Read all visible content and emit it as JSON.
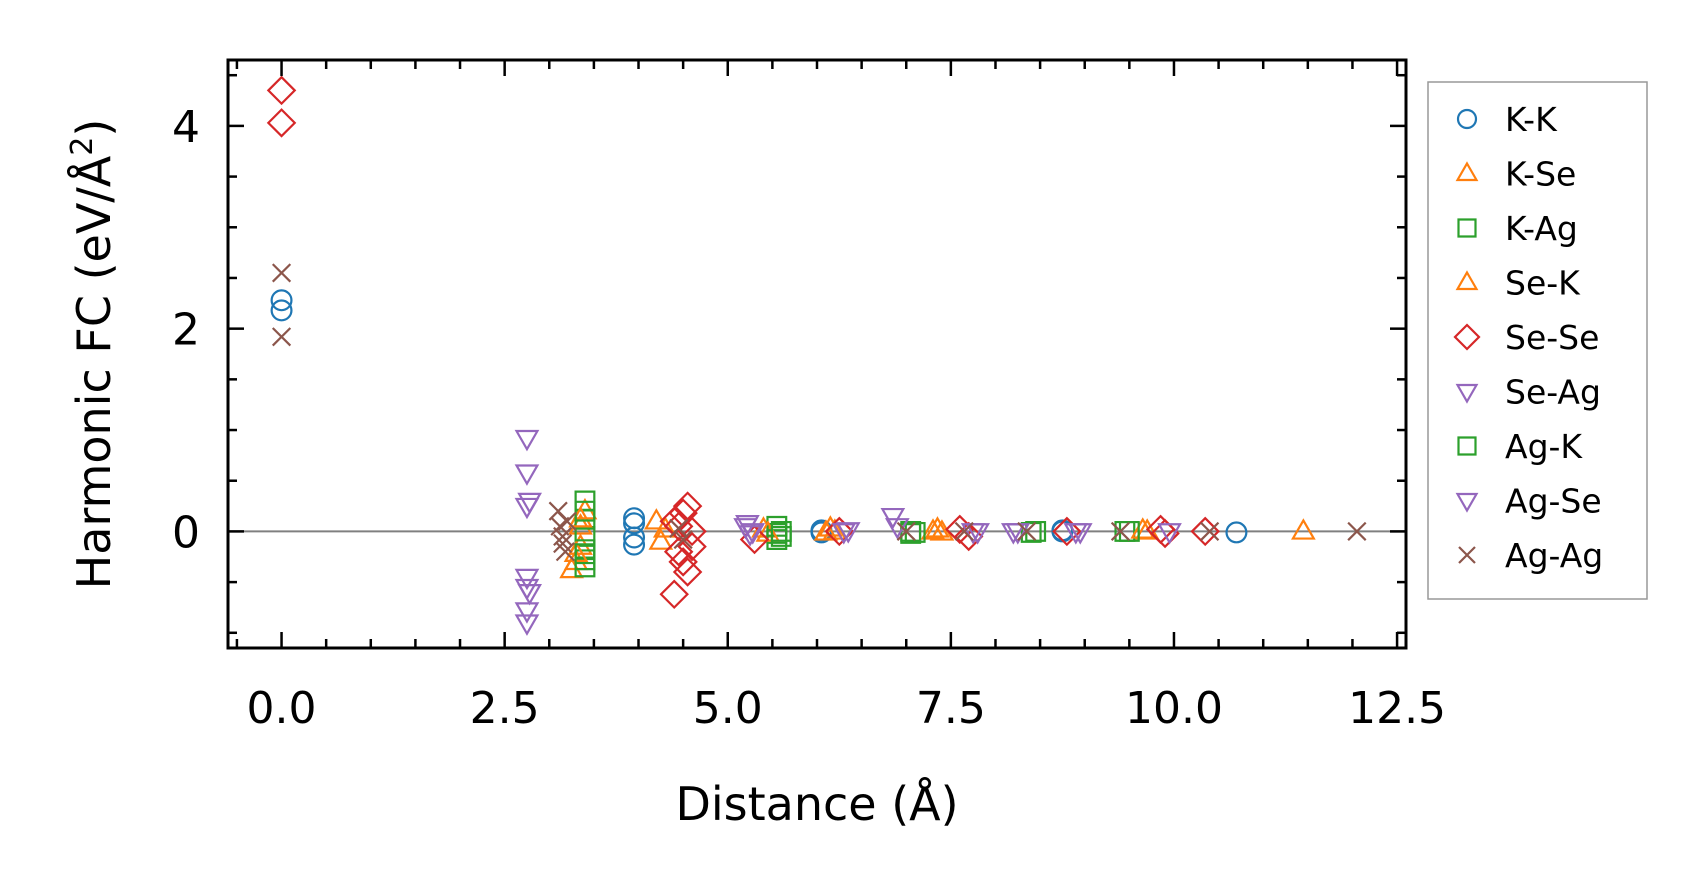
{
  "chart_data": {
    "type": "scatter",
    "title": "",
    "xlabel": "Distance (Å)",
    "ylabel": "Harmonic FC (eV/Å²)",
    "ylabel_parts": {
      "prefix": "Harmonic FC (eV/Å",
      "sup": "2",
      "suffix": ")"
    },
    "xlim": [
      -0.6,
      12.6
    ],
    "ylim": [
      -1.15,
      4.65
    ],
    "xticks": [
      0.0,
      2.5,
      5.0,
      7.5,
      10.0,
      12.5
    ],
    "xtick_labels": [
      "0.0",
      "2.5",
      "5.0",
      "7.5",
      "10.0",
      "12.5"
    ],
    "yticks": [
      0,
      2,
      4
    ],
    "ytick_labels": [
      "0",
      "2",
      "4"
    ],
    "reference_line_y": 0,
    "legend_position": "right",
    "colors": {
      "blue": "#1f77b4",
      "orange": "#ff7f0e",
      "green": "#2ca02c",
      "red": "#d62728",
      "purple": "#9467bd",
      "brown": "#8c564b",
      "refline": "#808080"
    },
    "series": [
      {
        "name": "K-K",
        "marker": "circle",
        "color": "#1f77b4",
        "x": [
          0.0,
          0.0,
          3.95,
          3.95,
          3.95,
          3.95,
          6.05,
          6.05,
          8.75,
          8.75,
          10.7
        ],
        "y": [
          2.18,
          2.28,
          0.13,
          0.08,
          -0.06,
          -0.13,
          -0.01,
          0.01,
          0.0,
          0.01,
          -0.01
        ]
      },
      {
        "name": "K-Se",
        "marker": "triangle-up",
        "color": "#ff7f0e",
        "x": [
          3.25,
          3.3,
          3.35,
          3.35,
          3.4,
          4.2,
          4.25,
          5.4,
          6.1,
          6.15,
          7.35,
          7.4,
          9.7,
          11.45
        ],
        "y": [
          -0.38,
          -0.3,
          -0.15,
          0.05,
          0.2,
          0.1,
          -0.1,
          0.02,
          -0.01,
          0.03,
          0.02,
          -0.01,
          0.0,
          0.0
        ]
      },
      {
        "name": "K-Ag",
        "marker": "square",
        "color": "#2ca02c",
        "x": [
          3.4,
          3.4,
          3.4,
          3.4,
          3.4,
          3.4,
          5.55,
          5.55,
          5.55,
          7.05,
          7.05,
          8.4,
          9.45
        ],
        "y": [
          0.3,
          0.12,
          -0.05,
          -0.18,
          -0.28,
          -0.35,
          0.05,
          -0.02,
          -0.08,
          0.0,
          -0.02,
          -0.01,
          0.0
        ]
      },
      {
        "name": "Se-K",
        "marker": "triangle-up",
        "color": "#ff7f0e",
        "x": [
          3.3,
          3.35,
          4.3,
          5.45,
          6.2,
          7.3,
          9.65
        ],
        "y": [
          -0.22,
          0.12,
          0.02,
          -0.02,
          0.0,
          0.0,
          0.01
        ]
      },
      {
        "name": "Se-Se",
        "marker": "diamond",
        "color": "#d62728",
        "x": [
          0.0,
          0.0,
          4.4,
          4.4,
          4.45,
          4.45,
          4.5,
          4.5,
          4.55,
          4.55,
          4.6,
          4.6,
          5.3,
          6.25,
          7.6,
          7.7,
          8.8,
          9.85,
          9.9,
          10.35
        ],
        "y": [
          4.35,
          4.03,
          0.1,
          -0.62,
          -0.2,
          0.05,
          -0.3,
          0.18,
          -0.4,
          0.25,
          -0.15,
          0.0,
          -0.08,
          0.0,
          0.02,
          -0.05,
          0.0,
          0.02,
          -0.02,
          0.0
        ]
      },
      {
        "name": "Se-Ag",
        "marker": "triangle-down",
        "color": "#9467bd",
        "x": [
          2.75,
          2.75,
          2.75,
          2.75,
          2.75,
          2.75,
          2.75,
          5.2,
          5.25,
          6.3,
          6.85,
          7.75,
          8.2,
          8.95,
          9.95
        ],
        "y": [
          0.92,
          0.58,
          0.25,
          -0.45,
          -0.55,
          -0.78,
          -0.9,
          0.05,
          -0.02,
          0.0,
          0.15,
          0.0,
          0.0,
          0.0,
          0.0
        ]
      },
      {
        "name": "Ag-K",
        "marker": "square",
        "color": "#2ca02c",
        "x": [
          3.4,
          3.4,
          5.6,
          5.6,
          7.1,
          8.45,
          9.5
        ],
        "y": [
          0.2,
          -0.22,
          0.0,
          -0.05,
          -0.01,
          0.0,
          0.0
        ]
      },
      {
        "name": "Ag-Se",
        "marker": "triangle-down",
        "color": "#9467bd",
        "x": [
          2.78,
          2.78,
          5.22,
          5.28,
          6.35,
          6.9,
          7.8,
          8.25,
          8.9
        ],
        "y": [
          0.3,
          -0.6,
          0.08,
          0.0,
          0.01,
          0.05,
          0.0,
          0.0,
          0.0
        ]
      },
      {
        "name": "Ag-Ag",
        "marker": "x",
        "color": "#8c564b",
        "x": [
          0.0,
          0.0,
          3.1,
          3.12,
          3.15,
          3.15,
          3.18,
          3.2,
          4.45,
          4.5,
          7.0,
          7.65,
          8.35,
          9.4,
          10.4,
          12.05
        ],
        "y": [
          2.55,
          1.92,
          0.2,
          0.05,
          -0.05,
          -0.12,
          -0.2,
          0.1,
          0.03,
          -0.08,
          0.0,
          0.0,
          0.0,
          0.0,
          0.0,
          0.0
        ]
      }
    ]
  }
}
